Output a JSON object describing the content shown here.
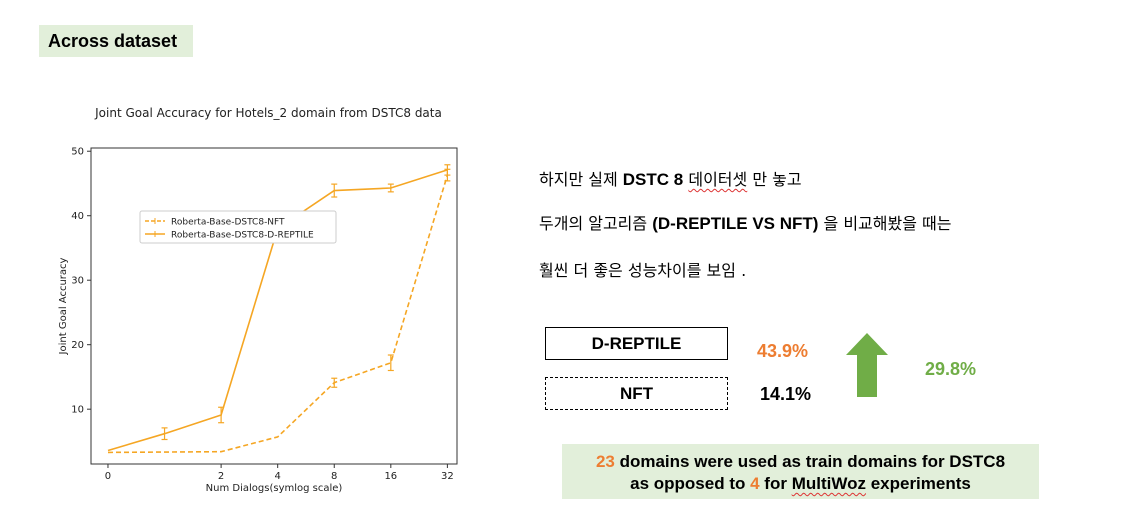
{
  "header": {
    "tag": "Across dataset"
  },
  "korean": {
    "line1": {
      "pre": "하지만 실제 ",
      "bold": "DSTC 8",
      "word": "데이터셋",
      "post": " 만 놓고"
    },
    "line2": {
      "pre": "두개의 알고리즘 ",
      "bold": "(D-REPTILE VS NFT)",
      "post": " 을 비교해봤을 때는"
    },
    "line3": "훨씬 더 좋은 성능차이를 보임 ."
  },
  "comparison": {
    "drep_label": "D-REPTILE",
    "drep_value": "43.9%",
    "nft_label": "NFT",
    "nft_value": "14.1%",
    "diff_value": "29.8%",
    "arrow_color": "#70ad47"
  },
  "note": {
    "num1": "23",
    "text1": " domains were used as train domains for DSTC8",
    "text2_pre": "as opposed to ",
    "num2": "4",
    "text2_mid": " for ",
    "word": "MultiWoz",
    "text2_post": " experiments"
  },
  "colors": {
    "accent_orange": "#ed7d31",
    "accent_green": "#70ad47",
    "box_bg": "#e2efda",
    "line": "#f5a623"
  },
  "chart_data": {
    "type": "line",
    "title": "Joint Goal Accuracy for Hotels_2 domain from DSTC8 data",
    "xlabel": "Num Dialogs(symlog scale)",
    "ylabel": "Joint Goal Accuracy",
    "x_scale": "symlog",
    "xticks": [
      0,
      2,
      4,
      8,
      16,
      32
    ],
    "xtick_labels": [
      "0",
      "2",
      "4",
      "8",
      "16",
      "32"
    ],
    "yticks": [
      10,
      20,
      30,
      40,
      50
    ],
    "ylim": [
      1.5,
      50.5
    ],
    "legend": "upper-left",
    "grid": false,
    "series": [
      {
        "name": "Roberta-Base-DSTC8-NFT",
        "style": "dashed",
        "x": [
          0,
          2,
          4,
          8,
          16,
          32
        ],
        "y": [
          3.3,
          3.4,
          5.7,
          14.1,
          17.2,
          46.3
        ],
        "err": [
          0,
          0,
          0,
          0.7,
          1.2,
          0.9
        ]
      },
      {
        "name": "Roberta-Base-DSTC8-D-REPTILE",
        "style": "solid",
        "x": [
          0,
          1,
          2,
          4,
          8,
          16,
          32
        ],
        "y": [
          3.6,
          6.2,
          9.1,
          38.0,
          43.9,
          44.3,
          47.1
        ],
        "err": [
          0,
          0.9,
          1.2,
          0,
          1.0,
          0.6,
          0.8
        ]
      }
    ]
  }
}
